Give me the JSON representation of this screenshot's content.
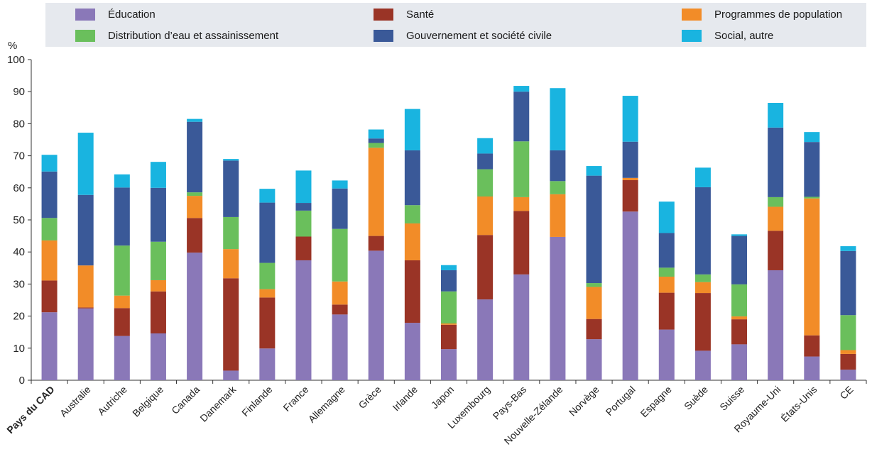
{
  "chart_data": {
    "type": "bar",
    "stacked": true,
    "ylabel": "%",
    "ylim": [
      0,
      100
    ],
    "yticks": [
      0,
      10,
      20,
      30,
      40,
      50,
      60,
      70,
      80,
      90,
      100
    ],
    "grid": false,
    "legend_position": "top",
    "categories": [
      "Pays du CAD",
      "Australie",
      "Autriche",
      "Belgique",
      "Canada",
      "Danemark",
      "Finlande",
      "France",
      "Allemagne",
      "Grèce",
      "Irlande",
      "Japon",
      "Luxembourg",
      "Pays-Bas",
      "Nouvelle-Zélande",
      "Norvège",
      "Portugal",
      "Espagne",
      "Suède",
      "Suisse",
      "Royaume-Uni",
      "États-Unis",
      "CE"
    ],
    "highlight_category": "Pays du CAD",
    "series": [
      {
        "name": "Éducation",
        "color": "#8a78b8",
        "values": [
          21.2,
          22.4,
          13.8,
          14.6,
          39.8,
          3.0,
          9.9,
          37.4,
          20.5,
          40.4,
          17.9,
          9.7,
          25.2,
          33.0,
          44.7,
          12.8,
          52.6,
          15.8,
          9.2,
          11.2,
          34.3,
          7.4,
          3.3
        ]
      },
      {
        "name": "Santé",
        "color": "#9a3426",
        "values": [
          9.9,
          0.3,
          8.7,
          13.1,
          10.8,
          28.8,
          15.9,
          7.4,
          3.1,
          4.6,
          19.5,
          7.6,
          20.1,
          19.8,
          0.0,
          6.3,
          9.8,
          11.5,
          18.0,
          7.8,
          12.3,
          6.6,
          4.9
        ]
      },
      {
        "name": "Programmes de population",
        "color": "#f28c28",
        "values": [
          12.5,
          13.1,
          3.9,
          3.5,
          6.9,
          9.1,
          2.6,
          0.0,
          7.2,
          27.5,
          11.5,
          0.4,
          12.0,
          4.3,
          13.3,
          10.0,
          0.7,
          5.0,
          3.4,
          0.9,
          7.5,
          42.7,
          1.2
        ]
      },
      {
        "name": "Distribution d’eau et assainissement",
        "color": "#6abf5c",
        "values": [
          7.0,
          0.0,
          15.6,
          12.0,
          1.1,
          10.0,
          8.2,
          8.1,
          16.4,
          1.5,
          5.7,
          10.0,
          8.5,
          17.4,
          4.1,
          1.2,
          0.0,
          2.8,
          2.4,
          10.0,
          3.0,
          0.5,
          10.9
        ]
      },
      {
        "name": "Gouvernement et société civile",
        "color": "#3a5998",
        "values": [
          14.5,
          22.0,
          18.1,
          16.8,
          22.0,
          17.6,
          18.8,
          2.4,
          12.6,
          1.4,
          17.1,
          6.6,
          4.9,
          15.5,
          9.6,
          33.5,
          11.3,
          10.8,
          27.2,
          15.1,
          21.7,
          17.1,
          20.0
        ]
      },
      {
        "name": "Social, autre",
        "color": "#19b4e0",
        "values": [
          5.2,
          19.4,
          4.1,
          8.1,
          0.9,
          0.5,
          4.3,
          10.1,
          2.5,
          2.8,
          12.9,
          1.6,
          4.8,
          1.8,
          19.4,
          3.0,
          14.3,
          9.8,
          6.1,
          0.5,
          7.7,
          3.1,
          1.5
        ]
      }
    ]
  },
  "legend": {
    "items": [
      {
        "label": "Éducation",
        "color": "#8a78b8"
      },
      {
        "label": "Santé",
        "color": "#9a3426"
      },
      {
        "label": "Programmes de population",
        "color": "#f28c28"
      },
      {
        "label": "Distribution d’eau et assainissement",
        "color": "#6abf5c"
      },
      {
        "label": "Gouvernement et société civile",
        "color": "#3a5998"
      },
      {
        "label": "Social, autre",
        "color": "#19b4e0"
      }
    ]
  }
}
